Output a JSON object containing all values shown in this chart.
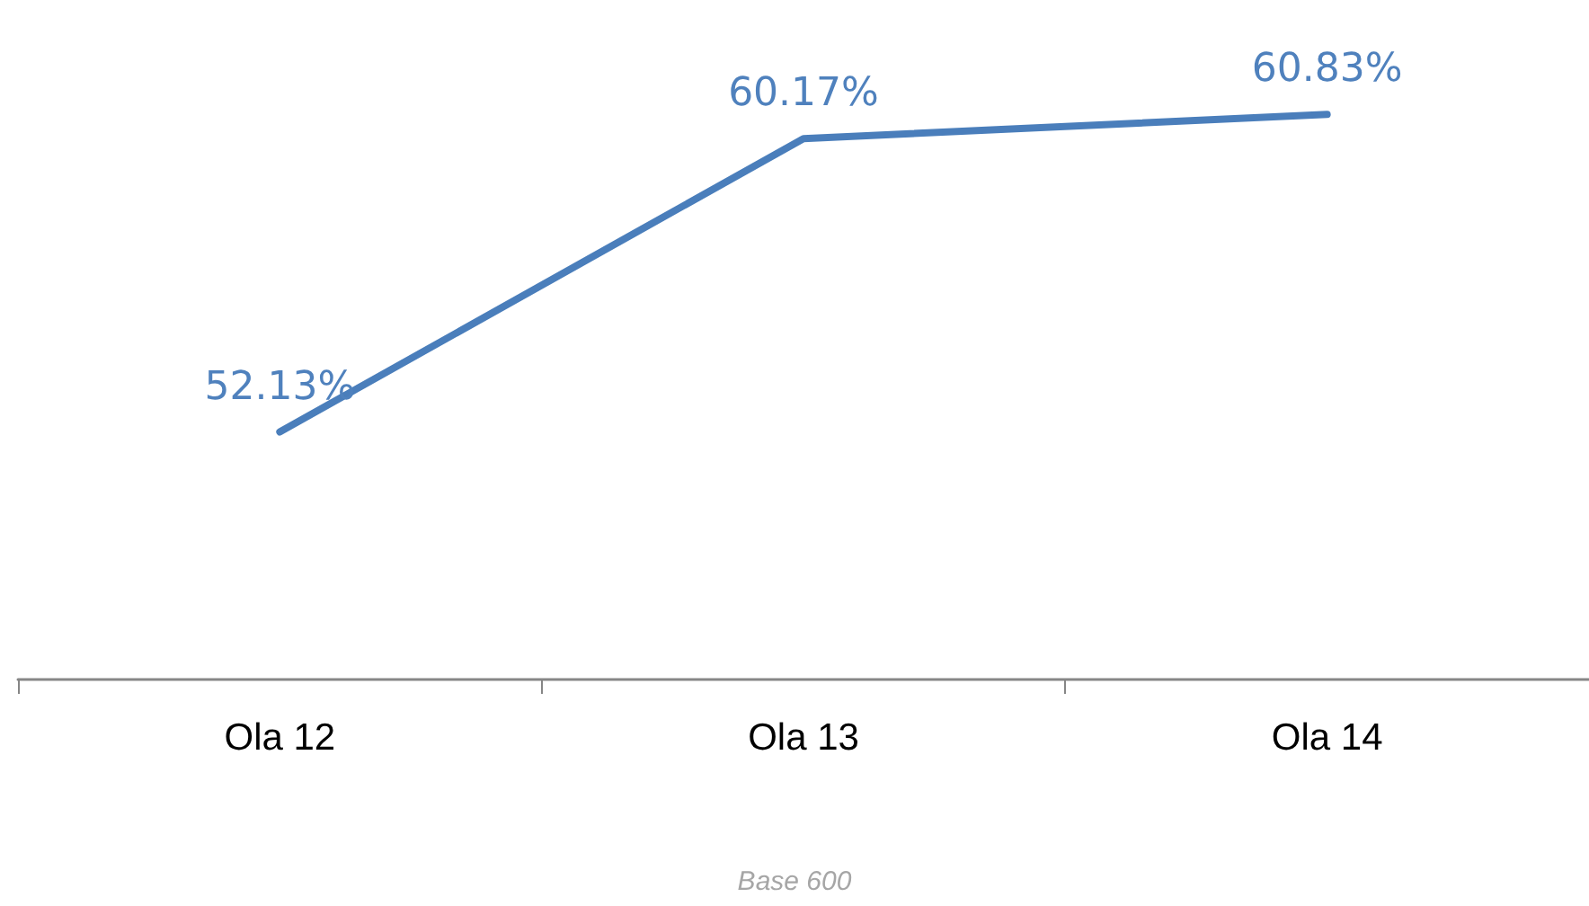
{
  "chart_data": {
    "type": "line",
    "categories": [
      "Ola 12",
      "Ola 13",
      "Ola 14"
    ],
    "series": [
      {
        "color": "#4a7ebb",
        "values": [
          52.13,
          60.17,
          60.83
        ],
        "value_labels": [
          "52.13%",
          "60.17%",
          "60.83%"
        ]
      }
    ],
    "tick_labels": "x",
    "grid": false,
    "marker": "none",
    "line_style": "solid",
    "annotations": [
      "Base 600"
    ]
  }
}
